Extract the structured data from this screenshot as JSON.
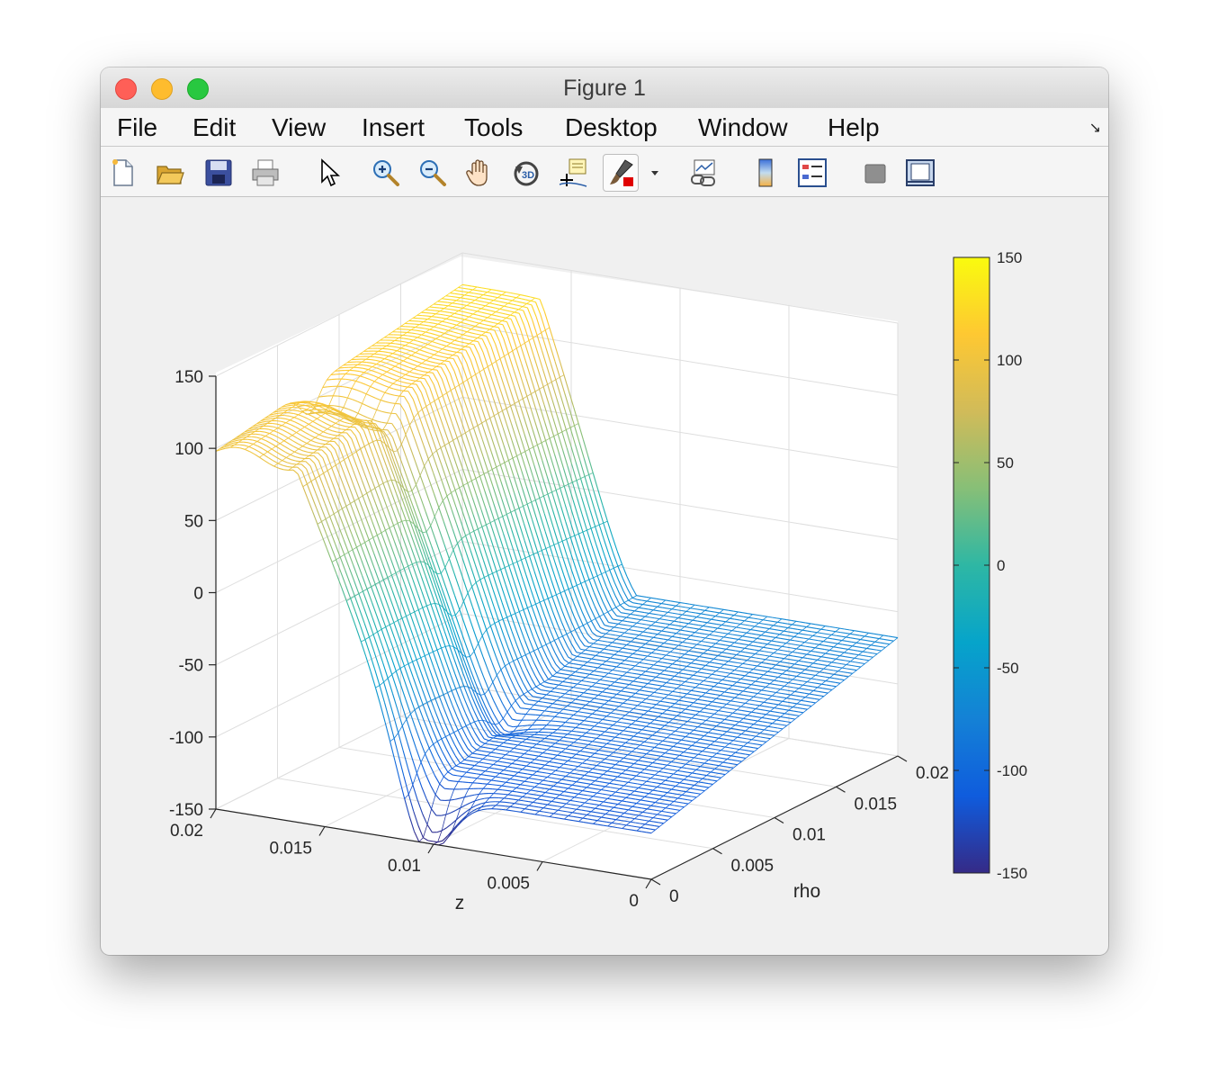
{
  "window": {
    "title": "Figure 1"
  },
  "menu": [
    "File",
    "Edit",
    "View",
    "Insert",
    "Tools",
    "Desktop",
    "Window",
    "Help"
  ],
  "toolbar": [
    {
      "name": "new-figure-icon"
    },
    {
      "name": "open-file-icon"
    },
    {
      "name": "save-icon"
    },
    {
      "name": "print-icon"
    },
    {
      "name": "edit-plot-arrow-icon"
    },
    {
      "name": "zoom-in-icon"
    },
    {
      "name": "zoom-out-icon"
    },
    {
      "name": "pan-hand-icon"
    },
    {
      "name": "rotate-3d-icon"
    },
    {
      "name": "data-cursor-icon"
    },
    {
      "name": "brush-icon"
    },
    {
      "name": "brush-dropdown-icon"
    },
    {
      "name": "link-plot-icon"
    },
    {
      "name": "insert-colorbar-icon"
    },
    {
      "name": "insert-legend-icon"
    },
    {
      "name": "hide-plot-tools-icon"
    },
    {
      "name": "show-plot-tools-icon"
    }
  ],
  "chart_data": {
    "type": "surface",
    "xlabel": "z",
    "ylabel": "rho",
    "zlabel": "",
    "xlim": [
      0,
      0.02
    ],
    "ylim": [
      0,
      0.02
    ],
    "zlim": [
      -150,
      150
    ],
    "x_ticks": [
      "0.02",
      "0.015",
      "0.01",
      "0.005",
      "0"
    ],
    "y_ticks": [
      "0",
      "0.005",
      "0.01",
      "0.015",
      "0.02"
    ],
    "z_ticks": [
      "150",
      "100",
      "50",
      "0",
      "-50",
      "-100",
      "-150"
    ],
    "colorbar": {
      "colormap": "parula",
      "limits": [
        -150,
        150
      ],
      "ticks": [
        "150",
        "100",
        "50",
        "0",
        "-50",
        "-100",
        "-150"
      ]
    },
    "surface": {
      "grid": "mesh",
      "description_values": {
        "plateau_high": 110,
        "plateau_low": -110,
        "minimum": -150
      }
    }
  }
}
